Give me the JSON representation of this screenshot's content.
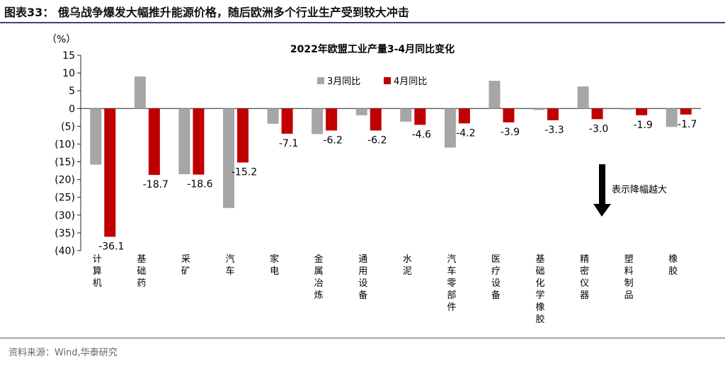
{
  "header": {
    "figure_title": "图表33： 俄乌战争爆发大幅推升能源价格，随后欧洲多个行业生产受到较大冲击"
  },
  "footer": {
    "source": "资料来源：Wind,华泰研究"
  },
  "chart_data": {
    "type": "bar",
    "title": "2022年欧盟工业产量3-4月同比变化",
    "unit_label": "（%）",
    "ylim": [
      -40,
      15
    ],
    "yticks": [
      15,
      10,
      5,
      0,
      -5,
      -10,
      -15,
      -20,
      -25,
      -30,
      -35,
      -40
    ],
    "ytick_labels": [
      "15",
      "10",
      "5",
      "0",
      "(5)",
      "(10)",
      "(15)",
      "(20)",
      "(25)",
      "(30)",
      "(35)",
      "(40)"
    ],
    "categories": [
      "计算机",
      "基础药",
      "采矿",
      "汽车",
      "家电",
      "金属冶炼",
      "通用设备",
      "水泥",
      "汽车零部件",
      "医疗设备",
      "基础化学橡胶",
      "精密仪器",
      "塑料制品",
      "橡胶"
    ],
    "series": [
      {
        "name": "3月同比",
        "color": "#a6a6a6",
        "values": [
          -15.8,
          9.0,
          -18.5,
          -28.0,
          -4.3,
          -7.2,
          -1.9,
          -3.7,
          -11.0,
          7.8,
          -0.4,
          6.2,
          -0.3,
          -5.2
        ]
      },
      {
        "name": "4月同比",
        "color": "#c00000",
        "values": [
          -36.1,
          -18.7,
          -18.6,
          -15.2,
          -7.1,
          -6.2,
          -6.2,
          -4.6,
          -4.2,
          -3.9,
          -3.3,
          -3.0,
          -1.9,
          -1.7
        ],
        "data_labels": [
          "-36.1",
          "-18.7",
          "-18.6",
          "-15.2",
          "-7.1",
          "-6.2",
          "-6.2",
          "-4.6",
          "-4.2",
          "-3.9",
          "-3.3",
          "-3.0",
          "-1.9",
          "-1.7"
        ]
      }
    ],
    "legend_placement": "top-center",
    "annotation": "表示降幅越大",
    "grid": false
  }
}
